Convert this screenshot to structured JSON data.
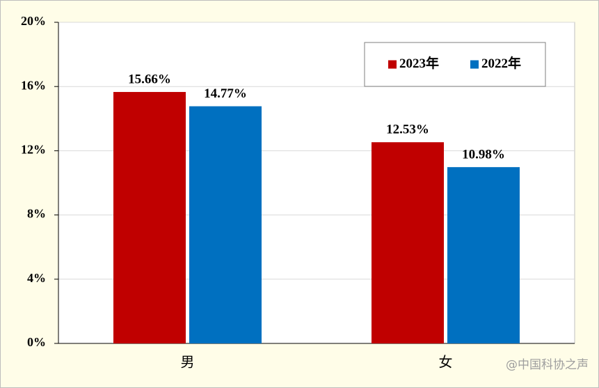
{
  "chart_data": {
    "type": "bar",
    "categories": [
      "男",
      "女"
    ],
    "series": [
      {
        "name": "2023年",
        "color": "#c00000",
        "values": [
          15.66,
          12.53
        ],
        "value_labels": [
          "15.66%",
          "12.53%"
        ]
      },
      {
        "name": "2022年",
        "color": "#0070c0",
        "values": [
          14.77,
          10.98
        ],
        "value_labels": [
          "14.77%",
          "10.98%"
        ]
      }
    ],
    "ylim": [
      0,
      20
    ],
    "yticks": [
      {
        "value": 0,
        "label": "0%"
      },
      {
        "value": 4,
        "label": "4%"
      },
      {
        "value": 8,
        "label": "8%"
      },
      {
        "value": 12,
        "label": "12%"
      },
      {
        "value": 16,
        "label": "16%"
      },
      {
        "value": 20,
        "label": "20%"
      }
    ],
    "grid": true,
    "legend": "upper right",
    "watermark": "@中国科协之声"
  }
}
